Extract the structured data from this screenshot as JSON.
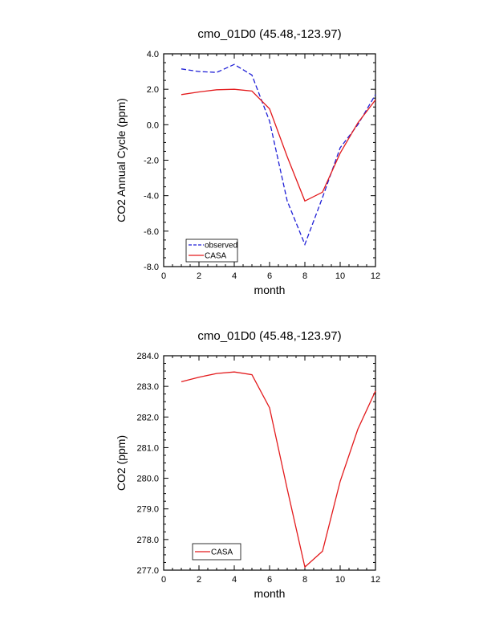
{
  "chart_data": [
    {
      "type": "line",
      "title": "cmo_01D0 (45.48,-123.97)",
      "xlabel": "month",
      "ylabel": "CO2 Annual Cycle (ppm)",
      "xlim": [
        0,
        12
      ],
      "ylim": [
        -8,
        4
      ],
      "xticks": [
        0,
        2,
        4,
        6,
        8,
        10,
        12
      ],
      "yticks": [
        -8,
        -6,
        -4,
        -2,
        0,
        2,
        4
      ],
      "ytick_decimals": 1,
      "legend_placement": "bottom-left",
      "x": [
        1,
        2,
        3,
        4,
        5,
        6,
        7,
        8,
        9,
        10,
        11,
        12
      ],
      "series": [
        {
          "name": "observed",
          "color": "#1f1fd6",
          "style": "dashed",
          "values": [
            3.15,
            3.0,
            2.95,
            3.4,
            2.8,
            0.2,
            -4.3,
            -6.75,
            -4.1,
            -1.3,
            0.0,
            1.7
          ]
        },
        {
          "name": "CASA",
          "color": "#e31a1c",
          "style": "solid",
          "values": [
            1.7,
            1.85,
            1.97,
            2.0,
            1.9,
            0.9,
            -1.8,
            -4.3,
            -3.8,
            -1.6,
            0.1,
            1.4
          ]
        }
      ]
    },
    {
      "type": "line",
      "title": "cmo_01D0 (45.48,-123.97)",
      "xlabel": "month",
      "ylabel": "CO2 (ppm)",
      "xlim": [
        0,
        12
      ],
      "ylim": [
        277,
        284
      ],
      "xticks": [
        0,
        2,
        4,
        6,
        8,
        10,
        12
      ],
      "yticks": [
        277,
        278,
        279,
        280,
        281,
        282,
        283,
        284
      ],
      "ytick_decimals": 1,
      "legend_placement": "bottom-left",
      "x": [
        1,
        2,
        3,
        4,
        5,
        6,
        7,
        8,
        9,
        10,
        11,
        12
      ],
      "series": [
        {
          "name": "CASA",
          "color": "#e31a1c",
          "style": "solid",
          "values": [
            283.15,
            283.3,
            283.42,
            283.47,
            283.38,
            282.3,
            279.65,
            277.1,
            277.62,
            279.9,
            281.6,
            282.85
          ]
        }
      ]
    }
  ]
}
